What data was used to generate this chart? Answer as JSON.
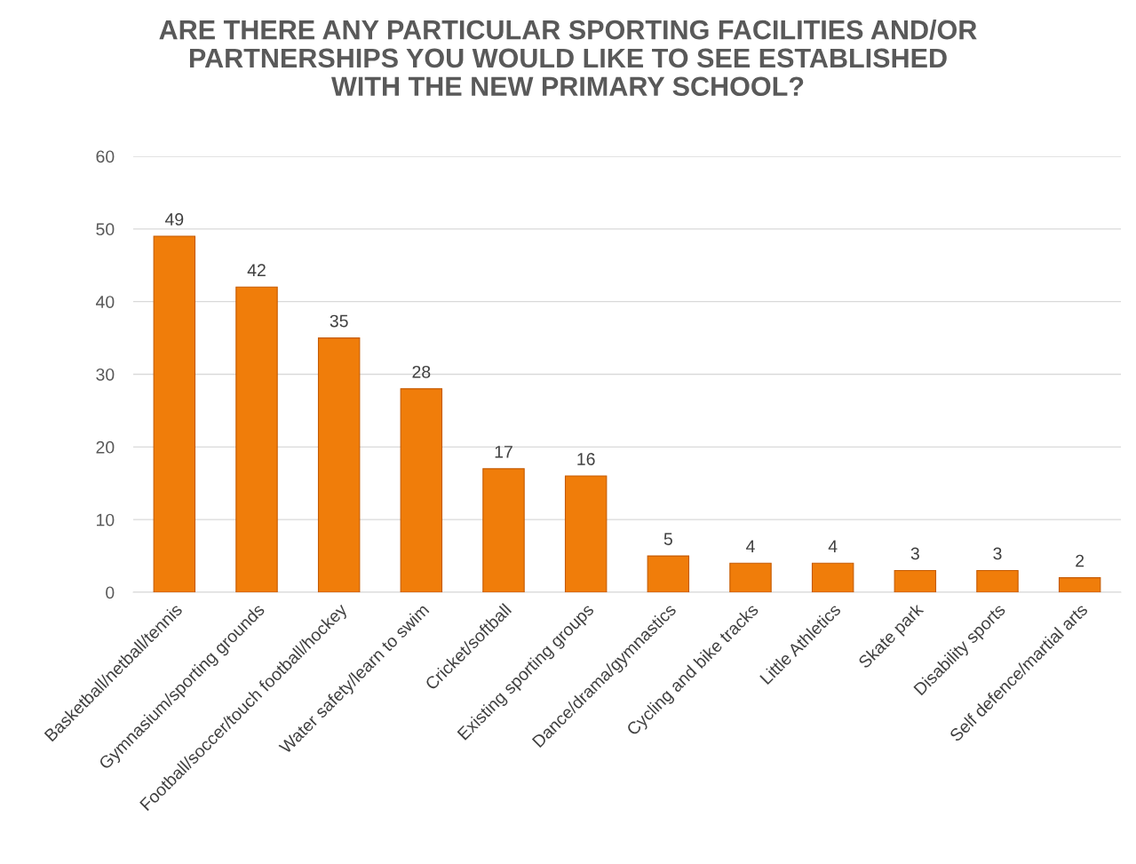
{
  "chart_data": {
    "type": "bar",
    "title": "ARE THERE ANY PARTICULAR SPORTING FACILITIES AND/OR\nPARTNERSHIPS YOU WOULD LIKE TO SEE ESTABLISHED\nWITH THE NEW PRIMARY SCHOOL?",
    "categories": [
      "Basketball/netball/tennis",
      "Gymnasium/sporting grounds",
      "Football/soccer/touch football/hockey",
      "Water safety/learn to swim",
      "Cricket/softball",
      "Existing sporting groups",
      "Dance/drama/gymnastics",
      "Cycling and bike tracks",
      "Little Athletics",
      "Skate park",
      "Disability sports",
      "Self defence/martial arts"
    ],
    "values": [
      49,
      42,
      35,
      28,
      17,
      16,
      5,
      4,
      4,
      3,
      3,
      2
    ],
    "color": "#f07d0a",
    "ylim": [
      0,
      60
    ],
    "yticks": [
      0,
      10,
      20,
      30,
      40,
      50,
      60
    ],
    "grid": "y",
    "data_labels": true
  }
}
